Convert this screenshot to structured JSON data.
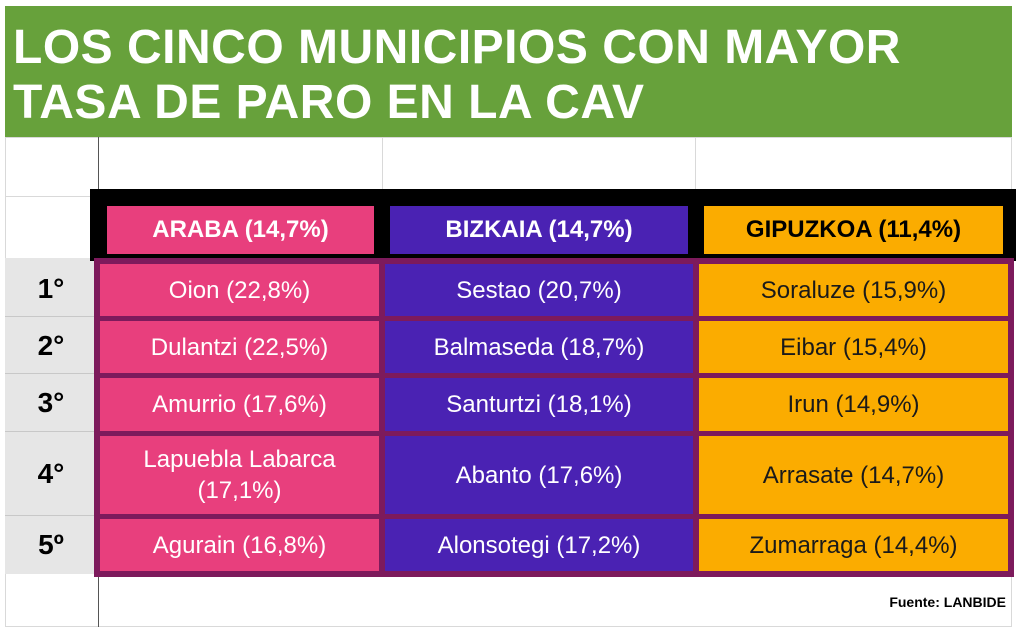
{
  "title": {
    "line1": "LOS CINCO MUNICIPIOS CON MAYOR",
    "line2": "TASA DE PARO EN LA CAV"
  },
  "columns": [
    {
      "label": "ARABA (14,7%)",
      "color": "#e83f7d"
    },
    {
      "label": "BIZKAIA (14,7%)",
      "color": "#4a22b3"
    },
    {
      "label": "GIPUZKOA (11,4%)",
      "color": "#fbac00"
    }
  ],
  "rows": [
    {
      "rank": "1°",
      "araba": "Oion (22,8%)",
      "bizkaia": "Sestao (20,7%)",
      "gipuzkoa": "Soraluze (15,9%)"
    },
    {
      "rank": "2°",
      "araba": "Dulantzi (22,5%)",
      "bizkaia": "Balmaseda (18,7%)",
      "gipuzkoa": "Eibar (15,4%)"
    },
    {
      "rank": "3°",
      "araba": "Amurrio (17,6%)",
      "bizkaia": "Santurtzi (18,1%)",
      "gipuzkoa": "Irun (14,9%)"
    },
    {
      "rank": "4°",
      "araba": "Lapuebla Labarca (17,1%)",
      "bizkaia": "Abanto (17,6%)",
      "gipuzkoa": "Arrasate (14,7%)"
    },
    {
      "rank": "5º",
      "araba": "Agurain (16,8%)",
      "bizkaia": "Alonsotegi (17,2%)",
      "gipuzkoa": "Zumarraga (14,4%)"
    }
  ],
  "source": "Fuente: LANBIDE"
}
